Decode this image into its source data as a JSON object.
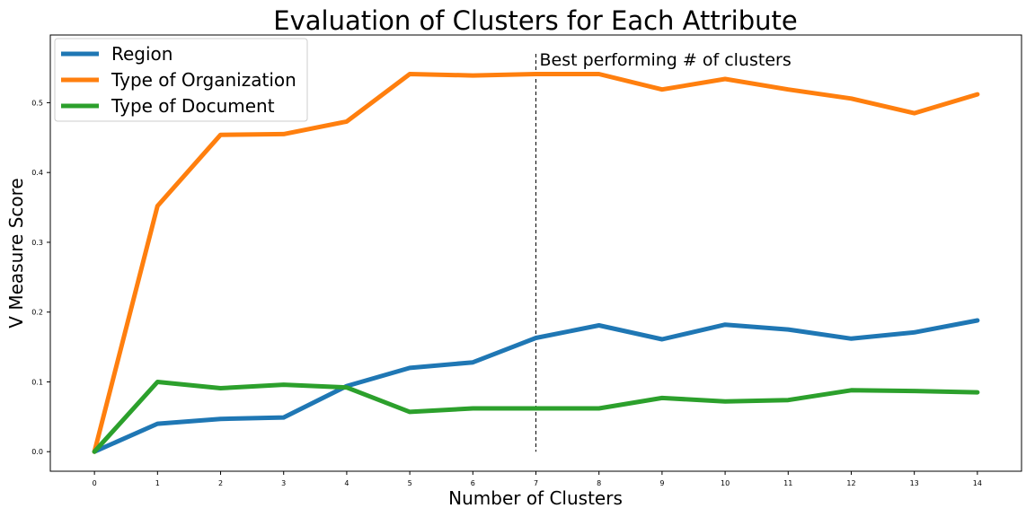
{
  "chart_data": {
    "type": "line",
    "title": "Evaluation of Clusters for Each Attribute",
    "xlabel": "Number of Clusters",
    "ylabel": "V Measure Score",
    "x": [
      0,
      1,
      2,
      3,
      4,
      5,
      6,
      7,
      8,
      9,
      10,
      11,
      12,
      13,
      14
    ],
    "xticks": [
      "0",
      "1",
      "2",
      "3",
      "4",
      "5",
      "6",
      "7",
      "8",
      "9",
      "10",
      "11",
      "12",
      "13",
      "14"
    ],
    "yticks": [
      "0.0",
      "0.1",
      "0.2",
      "0.3",
      "0.4",
      "0.5"
    ],
    "xlim": [
      -0.7,
      14.7
    ],
    "ylim": [
      -0.028,
      0.597
    ],
    "grid": false,
    "legend_position": "top-left",
    "series": [
      {
        "name": "Region",
        "color": "#1f77b4",
        "values": [
          0.0,
          0.04,
          0.047,
          0.049,
          0.094,
          0.12,
          0.128,
          0.163,
          0.181,
          0.161,
          0.182,
          0.175,
          0.162,
          0.171,
          0.188
        ]
      },
      {
        "name": "Type of Organization",
        "color": "#ff7f0e",
        "values": [
          0.0,
          0.352,
          0.454,
          0.455,
          0.473,
          0.541,
          0.539,
          0.541,
          0.541,
          0.519,
          0.534,
          0.519,
          0.506,
          0.485,
          0.512
        ]
      },
      {
        "name": "Type of Document",
        "color": "#2ca02c",
        "values": [
          0.0,
          0.1,
          0.091,
          0.096,
          0.092,
          0.057,
          0.062,
          0.062,
          0.062,
          0.077,
          0.072,
          0.074,
          0.088,
          0.087,
          0.085
        ]
      }
    ],
    "annotation": {
      "text": "Best performing # of clusters",
      "x": 7,
      "y_top": 0.57,
      "y_bottom": 0.0
    }
  }
}
